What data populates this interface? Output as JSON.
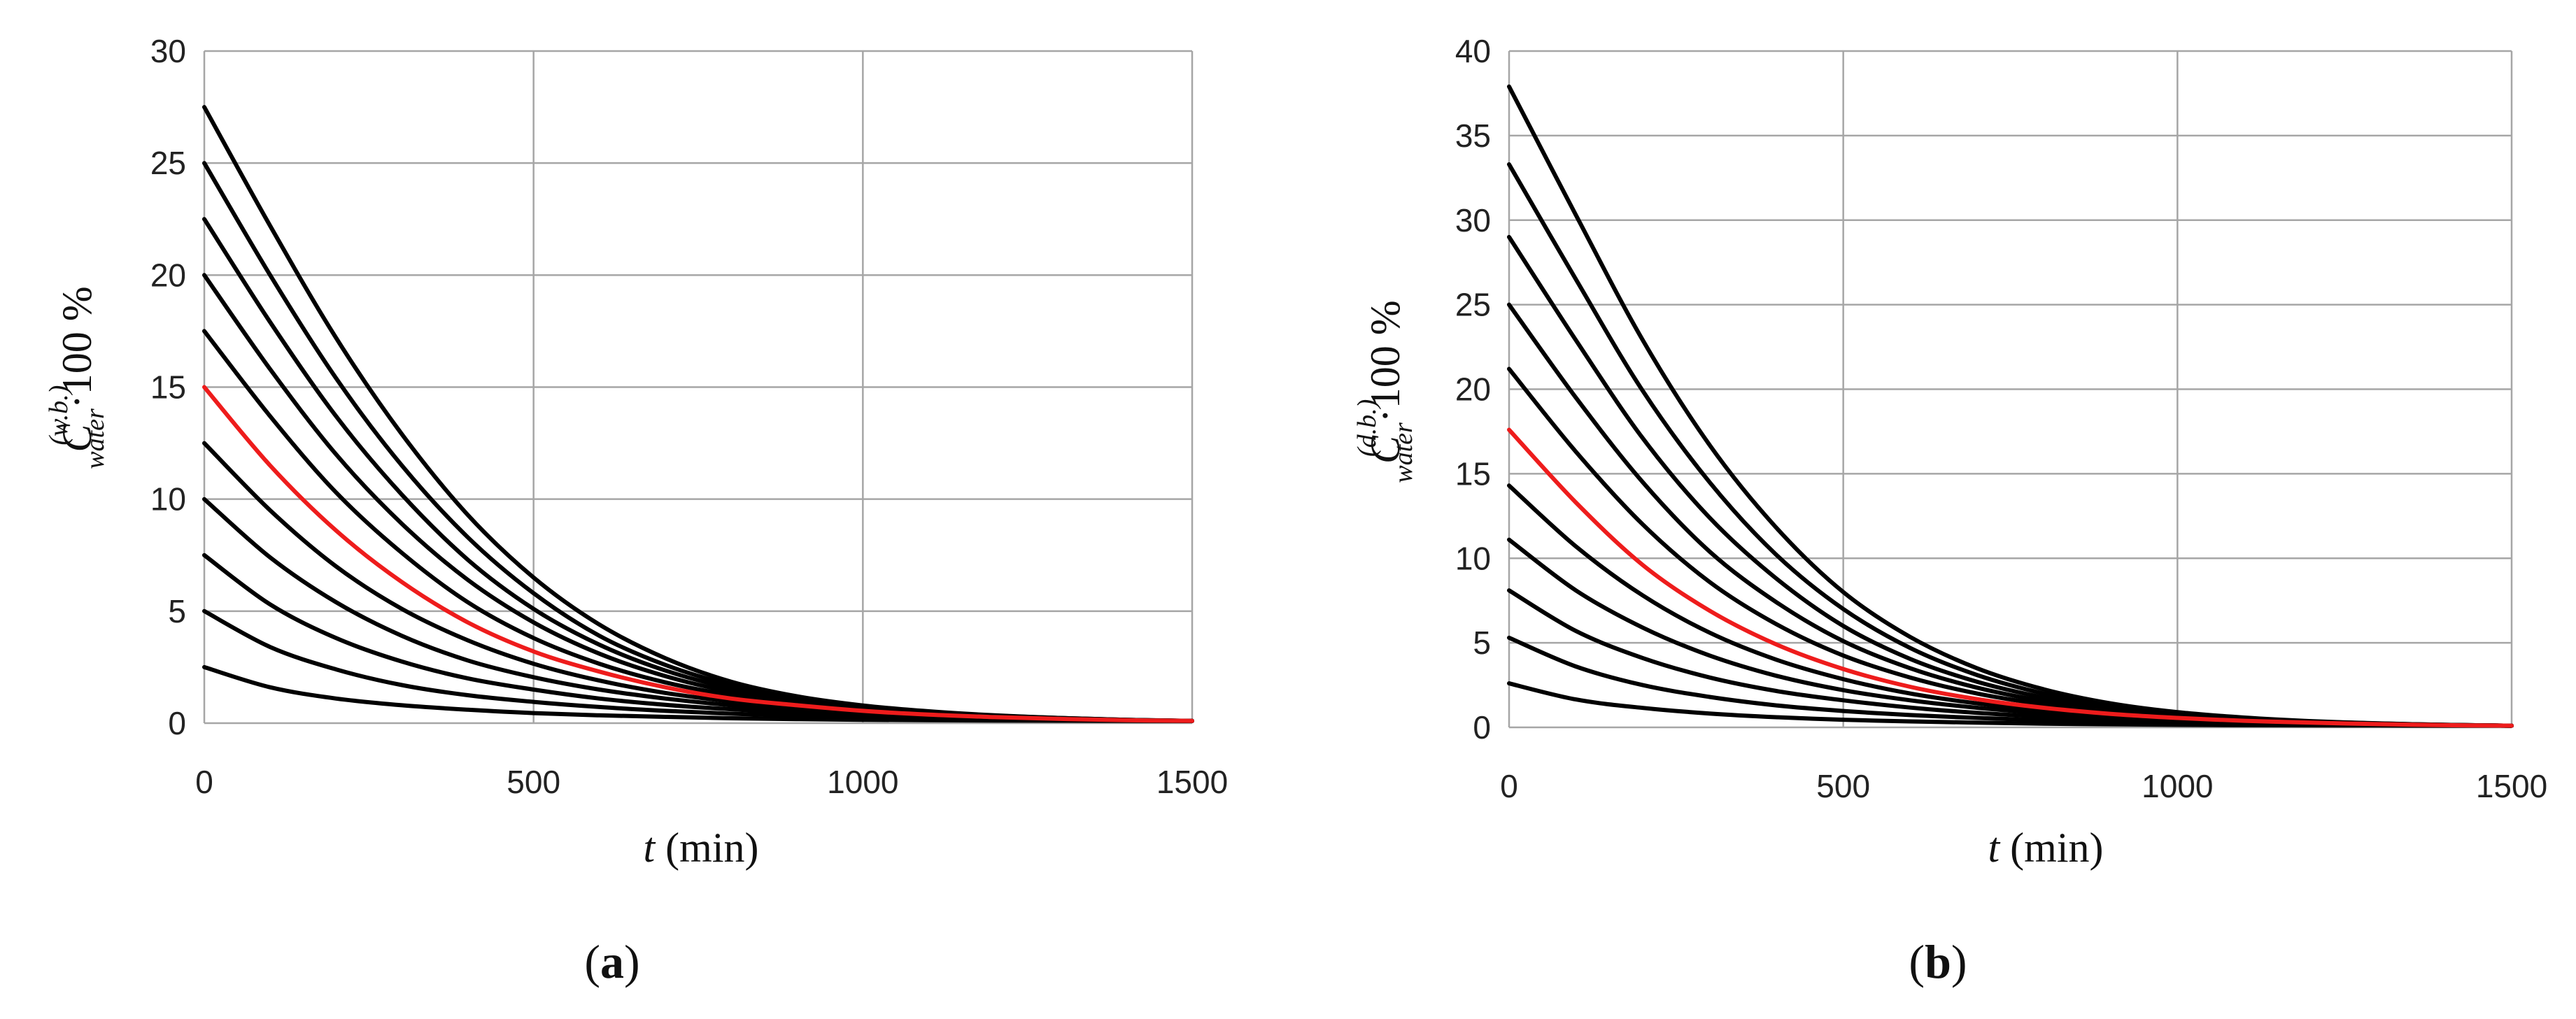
{
  "chart_data": [
    {
      "type": "line",
      "panel_label": "a",
      "xlabel": {
        "italic": "t",
        "rest": " (min)"
      },
      "ylabel": {
        "base": "C",
        "sub": "water",
        "sup": "(w.b.)",
        "suffix": "·100 %"
      },
      "xlim": [
        0,
        1500
      ],
      "ylim": [
        0,
        30
      ],
      "xticks": [
        0,
        500,
        1000,
        1500
      ],
      "yticks": [
        0,
        5,
        10,
        15,
        20,
        25,
        30
      ],
      "grid": true,
      "x": [
        0,
        100,
        200,
        300,
        400,
        500,
        600,
        700,
        800,
        900,
        1000,
        1100,
        1200,
        1300,
        1400,
        1500
      ],
      "series": [
        {
          "color": "#000000",
          "values": [
            2.5,
            1.6,
            1.1,
            0.8,
            0.6,
            0.45,
            0.35,
            0.28,
            0.22,
            0.18,
            0.15,
            0.13,
            0.12,
            0.11,
            0.1,
            0.1
          ]
        },
        {
          "color": "#000000",
          "values": [
            5.0,
            3.4,
            2.4,
            1.7,
            1.25,
            0.95,
            0.72,
            0.55,
            0.42,
            0.33,
            0.27,
            0.22,
            0.18,
            0.15,
            0.12,
            0.1
          ]
        },
        {
          "color": "#000000",
          "values": [
            7.5,
            5.3,
            3.8,
            2.75,
            2.0,
            1.5,
            1.1,
            0.82,
            0.62,
            0.47,
            0.36,
            0.28,
            0.21,
            0.16,
            0.12,
            0.1
          ]
        },
        {
          "color": "#000000",
          "values": [
            10.0,
            7.4,
            5.4,
            3.9,
            2.8,
            2.05,
            1.5,
            1.1,
            0.8,
            0.6,
            0.45,
            0.33,
            0.24,
            0.17,
            0.12,
            0.1
          ]
        },
        {
          "color": "#000000",
          "values": [
            12.5,
            9.5,
            7.0,
            5.1,
            3.7,
            2.65,
            1.9,
            1.35,
            0.97,
            0.7,
            0.5,
            0.36,
            0.26,
            0.18,
            0.13,
            0.1
          ]
        },
        {
          "color": "#ee1c1c",
          "values": [
            15.0,
            11.5,
            8.6,
            6.3,
            4.5,
            3.2,
            2.3,
            1.6,
            1.1,
            0.8,
            0.55,
            0.38,
            0.27,
            0.19,
            0.13,
            0.1
          ]
        },
        {
          "color": "#000000",
          "values": [
            17.5,
            13.7,
            10.3,
            7.6,
            5.4,
            3.8,
            2.65,
            1.82,
            1.25,
            0.87,
            0.6,
            0.42,
            0.29,
            0.2,
            0.14,
            0.1
          ]
        },
        {
          "color": "#000000",
          "values": [
            20.0,
            15.8,
            12.0,
            8.9,
            6.4,
            4.5,
            3.1,
            2.1,
            1.4,
            0.95,
            0.65,
            0.45,
            0.31,
            0.21,
            0.14,
            0.1
          ]
        },
        {
          "color": "#000000",
          "values": [
            22.5,
            17.9,
            13.7,
            10.2,
            7.3,
            5.1,
            3.5,
            2.35,
            1.55,
            1.02,
            0.7,
            0.47,
            0.32,
            0.22,
            0.15,
            0.1
          ]
        },
        {
          "color": "#000000",
          "values": [
            25.0,
            20.0,
            15.4,
            11.5,
            8.3,
            5.8,
            3.9,
            2.6,
            1.7,
            1.1,
            0.74,
            0.5,
            0.34,
            0.23,
            0.15,
            0.1
          ]
        },
        {
          "color": "#000000",
          "values": [
            27.5,
            22.2,
            17.2,
            12.9,
            9.3,
            6.5,
            4.4,
            2.9,
            1.85,
            1.2,
            0.79,
            0.53,
            0.35,
            0.23,
            0.15,
            0.1
          ]
        }
      ]
    },
    {
      "type": "line",
      "panel_label": "b",
      "xlabel": {
        "italic": "t",
        "rest": " (min)"
      },
      "ylabel": {
        "base": "C",
        "sub": "water",
        "sup": "(d.b.)",
        "suffix": "·100 %"
      },
      "xlim": [
        0,
        1500
      ],
      "ylim": [
        0,
        40
      ],
      "xticks": [
        0,
        500,
        1000,
        1500
      ],
      "yticks": [
        0,
        5,
        10,
        15,
        20,
        25,
        30,
        35,
        40
      ],
      "grid": true,
      "x": [
        0,
        100,
        200,
        300,
        400,
        500,
        600,
        700,
        800,
        900,
        1000,
        1100,
        1200,
        1300,
        1400,
        1500
      ],
      "series": [
        {
          "color": "#000000",
          "values": [
            2.6,
            1.65,
            1.15,
            0.82,
            0.6,
            0.45,
            0.35,
            0.28,
            0.22,
            0.18,
            0.15,
            0.13,
            0.12,
            0.11,
            0.1,
            0.1
          ]
        },
        {
          "color": "#000000",
          "values": [
            5.3,
            3.6,
            2.5,
            1.8,
            1.3,
            0.97,
            0.73,
            0.56,
            0.43,
            0.34,
            0.27,
            0.22,
            0.18,
            0.15,
            0.12,
            0.1
          ]
        },
        {
          "color": "#000000",
          "values": [
            8.1,
            5.7,
            4.1,
            2.95,
            2.15,
            1.6,
            1.17,
            0.86,
            0.64,
            0.48,
            0.37,
            0.28,
            0.21,
            0.16,
            0.12,
            0.1
          ]
        },
        {
          "color": "#000000",
          "values": [
            11.1,
            8.1,
            5.9,
            4.25,
            3.05,
            2.2,
            1.6,
            1.16,
            0.84,
            0.62,
            0.46,
            0.34,
            0.25,
            0.18,
            0.13,
            0.1
          ]
        },
        {
          "color": "#000000",
          "values": [
            14.3,
            10.7,
            7.8,
            5.6,
            4.0,
            2.85,
            2.0,
            1.42,
            1.0,
            0.72,
            0.52,
            0.37,
            0.27,
            0.19,
            0.13,
            0.1
          ]
        },
        {
          "color": "#ee1c1c",
          "values": [
            17.6,
            13.3,
            9.6,
            6.9,
            4.9,
            3.45,
            2.4,
            1.67,
            1.16,
            0.8,
            0.56,
            0.39,
            0.28,
            0.19,
            0.13,
            0.1
          ]
        },
        {
          "color": "#000000",
          "values": [
            21.2,
            16.3,
            12.0,
            8.6,
            6.1,
            4.25,
            2.95,
            2.0,
            1.36,
            0.93,
            0.63,
            0.43,
            0.3,
            0.2,
            0.14,
            0.1
          ]
        },
        {
          "color": "#000000",
          "values": [
            25.0,
            19.5,
            14.5,
            10.4,
            7.4,
            5.1,
            3.5,
            2.35,
            1.55,
            1.03,
            0.69,
            0.46,
            0.31,
            0.21,
            0.14,
            0.1
          ]
        },
        {
          "color": "#000000",
          "values": [
            29.0,
            22.9,
            17.1,
            12.4,
            8.8,
            6.0,
            4.05,
            2.7,
            1.77,
            1.15,
            0.76,
            0.5,
            0.33,
            0.22,
            0.15,
            0.1
          ]
        },
        {
          "color": "#000000",
          "values": [
            33.3,
            26.5,
            19.9,
            14.5,
            10.2,
            7.0,
            4.7,
            3.1,
            2.0,
            1.28,
            0.83,
            0.54,
            0.35,
            0.23,
            0.15,
            0.1
          ]
        },
        {
          "color": "#000000",
          "values": [
            37.9,
            30.3,
            22.9,
            16.7,
            11.8,
            8.0,
            5.35,
            3.5,
            2.25,
            1.42,
            0.9,
            0.58,
            0.37,
            0.24,
            0.15,
            0.1
          ]
        }
      ]
    }
  ]
}
